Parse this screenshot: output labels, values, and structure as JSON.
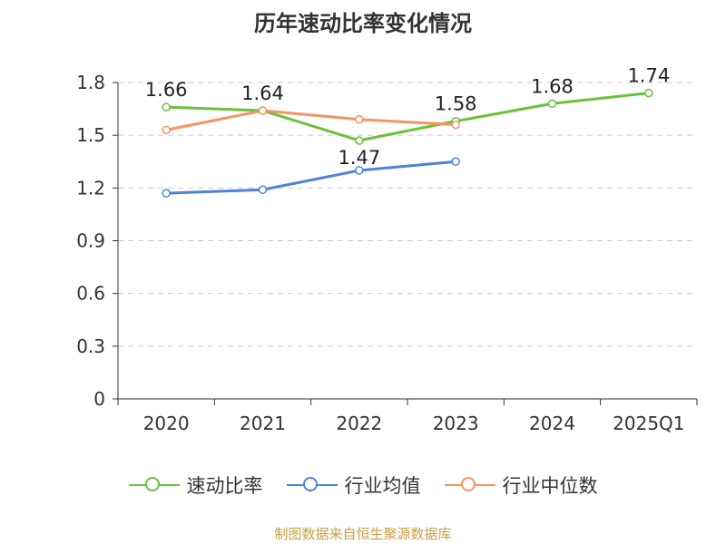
{
  "chart_data": {
    "type": "line",
    "title": "历年速动比率变化情况",
    "categories": [
      "2020",
      "2021",
      "2022",
      "2023",
      "2024",
      "2025Q1"
    ],
    "yticks": [
      "0",
      "0.3",
      "0.6",
      "0.9",
      "1.2",
      "1.5",
      "1.8"
    ],
    "ylim": [
      0,
      1.8
    ],
    "grid": true,
    "legend_position": "bottom",
    "series": [
      {
        "name": "速动比率",
        "color": "#6ac13a",
        "values": [
          1.66,
          1.64,
          1.47,
          1.58,
          1.68,
          1.74
        ],
        "labels": [
          "1.66",
          "1.64",
          "1.47",
          "1.58",
          "1.68",
          "1.74"
        ]
      },
      {
        "name": "行业均值",
        "color": "#4f81dc",
        "values": [
          1.17,
          1.19,
          1.3,
          1.35,
          null,
          null
        ]
      },
      {
        "name": "行业中位数",
        "color": "#f59462",
        "values": [
          1.53,
          1.64,
          1.59,
          1.56,
          null,
          null
        ]
      }
    ]
  },
  "source": "制图数据来自恒生聚源数据库"
}
